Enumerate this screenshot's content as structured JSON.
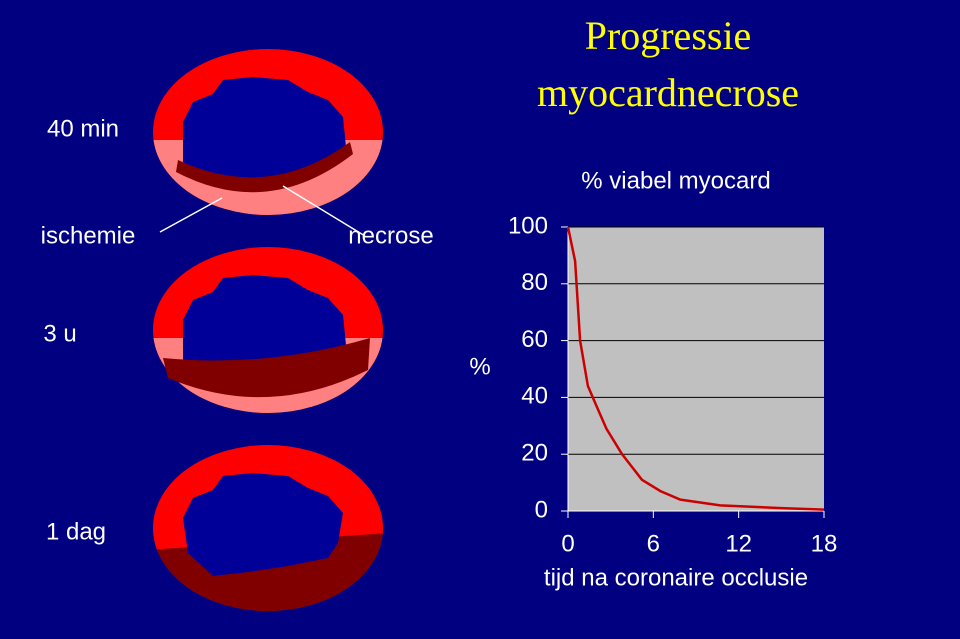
{
  "title": [
    "Progressie",
    "myocardnecrose"
  ],
  "labels": {
    "stage1": "40 min",
    "stage2": "3 u",
    "stage3": "1 dag",
    "ischemie": "ischemie",
    "necrose": "necrose"
  },
  "chart_data": {
    "type": "line",
    "title": "% viabel myocard",
    "y_label": "%",
    "x_label": "tijd na coronaire occlusie",
    "x": [
      0,
      0.5,
      0.85,
      1.4,
      2,
      2.7,
      3.8,
      5.2,
      6.5,
      7.9,
      10.7,
      15,
      18
    ],
    "values": [
      100,
      88,
      60,
      44,
      37,
      29,
      20,
      11,
      7,
      4,
      2,
      1,
      0.5
    ],
    "color": "#cc0000",
    "xlim": [
      0,
      18
    ],
    "xticks": [
      0,
      6,
      12,
      18
    ],
    "ylim": [
      0,
      100
    ],
    "yticks": [
      0,
      20,
      40,
      60,
      80,
      100
    ],
    "grid": true
  }
}
